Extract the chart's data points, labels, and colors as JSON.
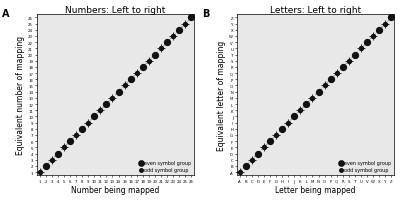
{
  "panel_A": {
    "title": "Numbers: Left to right",
    "xlabel": "Number being mapped",
    "ylabel": "Equivalent number of mapping",
    "even_x": [
      2,
      4,
      6,
      8,
      10,
      12,
      14,
      16,
      18,
      20,
      22,
      24,
      26
    ],
    "even_y": [
      2,
      4,
      6,
      8,
      10,
      12,
      14,
      16,
      18,
      20,
      22,
      24,
      26
    ],
    "odd_x": [
      1,
      3,
      5,
      7,
      9,
      11,
      13,
      15,
      17,
      19,
      21,
      23,
      25
    ],
    "odd_y": [
      1,
      3,
      5,
      7,
      9,
      11,
      13,
      15,
      17,
      19,
      21,
      23,
      25
    ],
    "xtick_vals": [
      1,
      2,
      3,
      4,
      5,
      6,
      7,
      8,
      9,
      10,
      11,
      12,
      13,
      14,
      15,
      16,
      17,
      18,
      19,
      20,
      21,
      22,
      23,
      24,
      25,
      26
    ],
    "xtick_labels": [
      "1",
      "2",
      "3",
      "4",
      "5",
      "6",
      "7",
      "8",
      "9",
      "10",
      "11",
      "12",
      "13",
      "14",
      "15",
      "16",
      "17",
      "18",
      "19",
      "20",
      "21",
      "22",
      "23",
      "24",
      "25",
      "26"
    ],
    "ytick_vals": [
      1,
      2,
      3,
      4,
      5,
      6,
      7,
      8,
      9,
      10,
      11,
      12,
      13,
      14,
      15,
      16,
      17,
      18,
      19,
      20,
      21,
      22,
      23,
      24,
      25,
      26
    ],
    "ytick_labels": [
      "1",
      "2",
      "3",
      "4",
      "5",
      "6",
      "7",
      "8",
      "9",
      "10",
      "11",
      "12",
      "13",
      "14",
      "15",
      "16",
      "17",
      "18",
      "19",
      "20",
      "21",
      "22",
      "23",
      "24",
      "25",
      "26"
    ],
    "panel_label": "A",
    "xlim": [
      0.5,
      26.5
    ],
    "ylim": [
      0.5,
      26.5
    ],
    "line_x": [
      1,
      26
    ],
    "line_y": [
      1,
      26
    ]
  },
  "panel_B": {
    "title": "Letters: Left to right",
    "xlabel": "Letter being mapped",
    "ylabel": "Equivalent letter of mapping",
    "letters": [
      "A",
      "B",
      "C",
      "D",
      "E",
      "F",
      "G",
      "H",
      "I",
      "J",
      "K",
      "L",
      "M",
      "N",
      "O",
      "P",
      "Q",
      "R",
      "S",
      "T",
      "U",
      "V",
      "W",
      "X",
      "Y",
      "Z"
    ],
    "even_x": [
      1,
      3,
      5,
      7,
      9,
      11,
      13,
      15,
      17,
      19,
      21,
      23,
      25
    ],
    "even_y": [
      1,
      3,
      5,
      7,
      9,
      11,
      13,
      15,
      17,
      19,
      21,
      23,
      25
    ],
    "odd_x": [
      0,
      2,
      4,
      6,
      8,
      10,
      12,
      14,
      16,
      18,
      20,
      22,
      24
    ],
    "odd_y": [
      0,
      2,
      4,
      6,
      8,
      10,
      12,
      14,
      16,
      18,
      20,
      22,
      24
    ],
    "panel_label": "B",
    "xlim": [
      -0.5,
      25.5
    ],
    "ylim": [
      -0.5,
      25.5
    ],
    "line_x": [
      0,
      25
    ],
    "line_y": [
      0,
      25
    ]
  },
  "even_color": "#111111",
  "odd_color": "#111111",
  "even_marker_size": 18,
  "odd_marker_size": 8,
  "line_color": "#999999",
  "bg_color": "#e8e8e8",
  "legend_even": "even symbol group",
  "legend_odd": "odd symbol group"
}
